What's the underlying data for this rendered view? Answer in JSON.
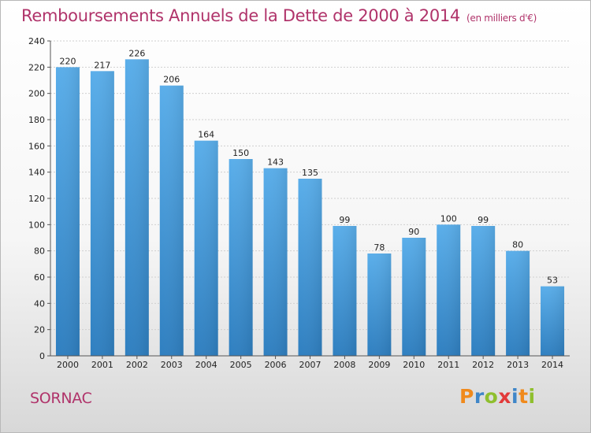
{
  "title": "Remboursements Annuels de la Dette de 2000 à 2014",
  "subtitle": "(en milliers d'€)",
  "commune": "SORNAC",
  "logo": {
    "letters": [
      "P",
      "r",
      "o",
      "x",
      "i",
      "t",
      "i"
    ],
    "colors": [
      "#f08a1c",
      "#3f86c8",
      "#8fbf2e",
      "#e23a3a",
      "#3f86c8",
      "#f08a1c",
      "#8fbf2e"
    ]
  },
  "colors": {
    "bar_top": "#5aaeea",
    "bar_bottom": "#2f7fc0",
    "title": "#b0336a"
  },
  "chart_data": {
    "type": "bar",
    "categories": [
      "2000",
      "2001",
      "2002",
      "2003",
      "2004",
      "2005",
      "2006",
      "2007",
      "2008",
      "2009",
      "2010",
      "2011",
      "2012",
      "2013",
      "2014"
    ],
    "values": [
      220,
      217,
      226,
      206,
      164,
      150,
      143,
      135,
      99,
      78,
      90,
      100,
      99,
      80,
      53
    ],
    "ylim": [
      0,
      240
    ],
    "yticks": [
      0,
      20,
      40,
      60,
      80,
      100,
      120,
      140,
      160,
      180,
      200,
      220,
      240
    ],
    "grid": true
  }
}
